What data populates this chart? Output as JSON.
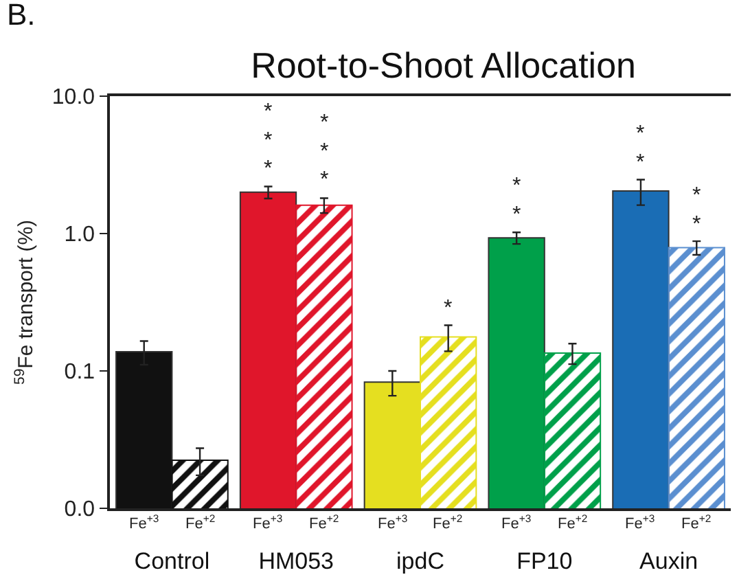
{
  "chart_data": {
    "type": "bar",
    "title": "Root-to-Shoot Allocation",
    "ylabel": "$^{59}$Fe transport (%)",
    "categories": [
      "Control",
      "HM053",
      "ipdC",
      "FP10",
      "Auxin"
    ],
    "series": [
      {
        "name": "Fe$^{+3}$",
        "colors": [
          "#111111",
          "#e0162b",
          "#e5df20",
          "#00a04a",
          "#1a6db5"
        ],
        "values": [
          0.138,
          2.0,
          0.083,
          0.93,
          2.04
        ],
        "errors": [
          0.027,
          0.2,
          0.017,
          0.09,
          0.43
        ],
        "value_labels": [
          null,
          "***",
          null,
          "**",
          "**"
        ]
      },
      {
        "name": "Fe$^{+2}$",
        "colors": [
          "#111111",
          "#e0162b",
          "#e5df20",
          "#00a04a",
          "#5b8fd0"
        ],
        "values": [
          0.0224,
          1.61,
          0.177,
          0.135,
          0.79
        ],
        "errors": [
          0.005,
          0.2,
          0.038,
          0.023,
          0.09
        ],
        "value_labels": [
          null,
          "***",
          "*",
          null,
          "**"
        ]
      }
    ],
    "log": true,
    "ylim": [
      0.01,
      10
    ],
    "yticks": [
      {
        "value": 0.01,
        "label": "0.0"
      },
      {
        "value": 0.1,
        "label": "0.1"
      },
      {
        "value": 1,
        "label": "1.0"
      },
      {
        "value": 10,
        "label": "10.0"
      }
    ],
    "grid": false,
    "legend": false,
    "annotations": [
      "B."
    ]
  }
}
